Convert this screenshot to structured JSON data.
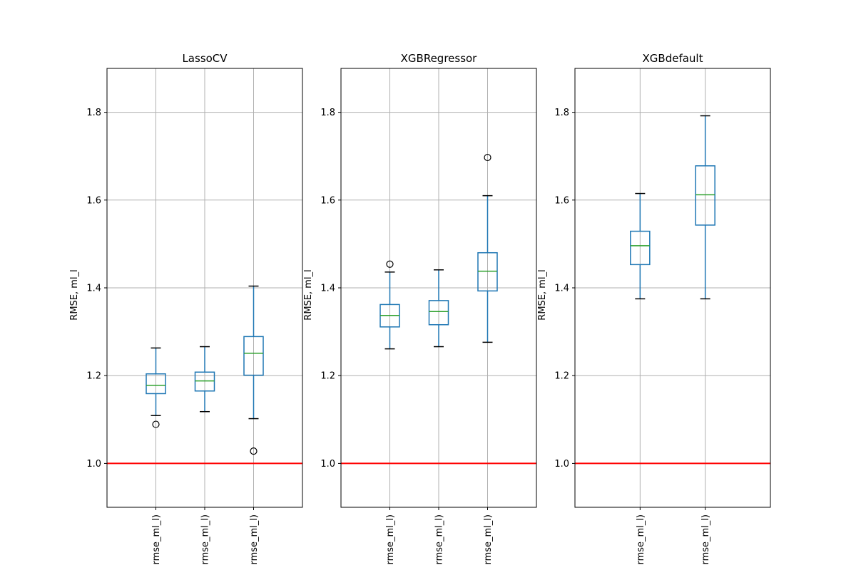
{
  "chart_data": [
    {
      "type": "box",
      "title": "LassoCV",
      "ylabel": "RMSE, ml_l",
      "xlabel": "",
      "ylim": [
        0.9,
        1.9
      ],
      "yticks": [
        1.0,
        1.2,
        1.4,
        1.6,
        1.8
      ],
      "ytick_labels": [
        "1.0",
        "1.2",
        "1.4",
        "1.6",
        "1.8"
      ],
      "grid": true,
      "reference_line": {
        "y": 1.0,
        "color": "#ff0000"
      },
      "categories": [
        "rmse_ml_l)",
        "rmse_ml_l)",
        "rmse_ml_l)"
      ],
      "boxes": [
        {
          "whisker_low": 1.109,
          "q1": 1.159,
          "median": 1.178,
          "q3": 1.204,
          "whisker_high": 1.263,
          "outliers": [
            1.089
          ]
        },
        {
          "whisker_low": 1.118,
          "q1": 1.165,
          "median": 1.188,
          "q3": 1.208,
          "whisker_high": 1.266,
          "outliers": []
        },
        {
          "whisker_low": 1.102,
          "q1": 1.201,
          "median": 1.251,
          "q3": 1.289,
          "whisker_high": 1.404,
          "outliers": [
            1.028
          ]
        }
      ]
    },
    {
      "type": "box",
      "title": "XGBRegressor",
      "ylabel": "RMSE, ml_l",
      "xlabel": "",
      "ylim": [
        0.9,
        1.9
      ],
      "yticks": [
        1.0,
        1.2,
        1.4,
        1.6,
        1.8
      ],
      "ytick_labels": [
        "1.0",
        "1.2",
        "1.4",
        "1.6",
        "1.8"
      ],
      "grid": true,
      "reference_line": {
        "y": 1.0,
        "color": "#ff0000"
      },
      "categories": [
        "rmse_ml_l)",
        "rmse_ml_l)",
        "rmse_ml_l)"
      ],
      "boxes": [
        {
          "whisker_low": 1.261,
          "q1": 1.311,
          "median": 1.337,
          "q3": 1.362,
          "whisker_high": 1.436,
          "outliers": [
            1.454
          ]
        },
        {
          "whisker_low": 1.266,
          "q1": 1.316,
          "median": 1.346,
          "q3": 1.371,
          "whisker_high": 1.441,
          "outliers": []
        },
        {
          "whisker_low": 1.276,
          "q1": 1.393,
          "median": 1.438,
          "q3": 1.48,
          "whisker_high": 1.61,
          "outliers": [
            1.697
          ]
        }
      ]
    },
    {
      "type": "box",
      "title": "XGBdefault",
      "ylabel": "RMSE, ml_l",
      "xlabel": "",
      "ylim": [
        0.9,
        1.9
      ],
      "yticks": [
        1.0,
        1.2,
        1.4,
        1.6,
        1.8
      ],
      "ytick_labels": [
        "1.0",
        "1.2",
        "1.4",
        "1.6",
        "1.8"
      ],
      "grid": true,
      "reference_line": {
        "y": 1.0,
        "color": "#ff0000"
      },
      "categories": [
        "rmse_ml_l)",
        "rmse_ml_l)"
      ],
      "boxes": [
        {
          "whisker_low": 1.375,
          "q1": 1.453,
          "median": 1.496,
          "q3": 1.529,
          "whisker_high": 1.615,
          "outliers": []
        },
        {
          "whisker_low": 1.375,
          "q1": 1.543,
          "median": 1.612,
          "q3": 1.678,
          "whisker_high": 1.792,
          "outliers": []
        }
      ]
    }
  ],
  "colors": {
    "box": "#1f77b4",
    "median": "#2ca02c",
    "whisker_cap": "#000000",
    "grid": "#b0b0b0",
    "reference": "#ff0000"
  }
}
